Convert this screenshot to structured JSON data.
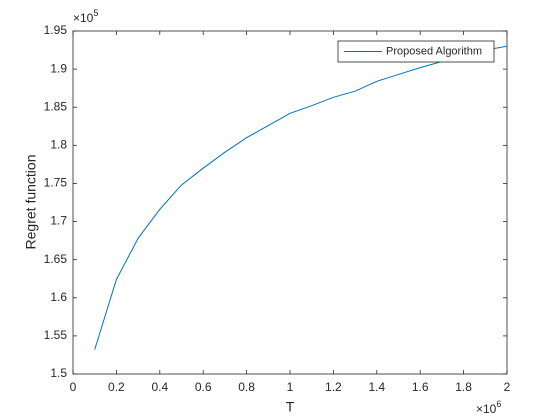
{
  "chart_data": {
    "type": "line",
    "x_label": "T",
    "y_label": "Regret function",
    "x_multiplier": {
      "base": "×10",
      "exponent": "6"
    },
    "y_multiplier": {
      "base": "×10",
      "exponent": "5"
    },
    "x": [
      0.1,
      0.2,
      0.3,
      0.4,
      0.5,
      0.6,
      0.7,
      0.8,
      0.9,
      1.0,
      1.1,
      1.2,
      1.3,
      1.4,
      1.5,
      1.6,
      1.7,
      1.8,
      1.9,
      2.0
    ],
    "series": [
      {
        "name": "Proposed Algorithm",
        "color": "#0072bd",
        "values": [
          1.532,
          1.624,
          1.678,
          1.716,
          1.748,
          1.77,
          1.791,
          1.81,
          1.826,
          1.842,
          1.852,
          1.863,
          1.871,
          1.884,
          1.893,
          1.902,
          1.91,
          1.918,
          1.925,
          1.93
        ]
      }
    ],
    "xlim": [
      0,
      2
    ],
    "ylim": [
      1.5,
      1.95
    ],
    "xticks": [
      0,
      0.2,
      0.4,
      0.6,
      0.8,
      1,
      1.2,
      1.4,
      1.6,
      1.8,
      2
    ],
    "yticks": [
      1.5,
      1.55,
      1.6,
      1.65,
      1.7,
      1.75,
      1.8,
      1.85,
      1.9,
      1.95
    ],
    "legend": "top-right",
    "grid": false
  }
}
